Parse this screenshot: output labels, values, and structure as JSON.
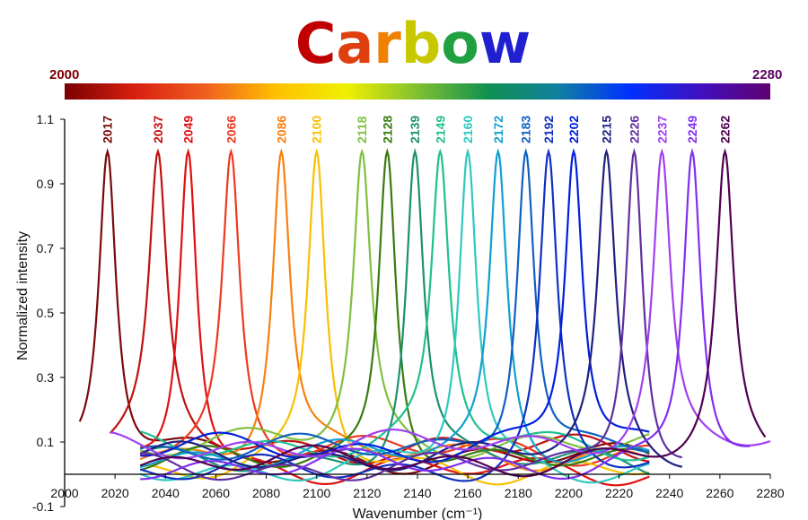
{
  "chart_data": {
    "type": "line",
    "title": "Carbow",
    "title_colors": [
      "#c00000",
      "#e04010",
      "#f08000",
      "#c8c800",
      "#20a040",
      "#2020d0",
      "#601070"
    ],
    "xlabel": "Wavenumber (cm⁻¹)",
    "ylabel": "Normalized intensity",
    "xlim": [
      2000,
      2280
    ],
    "ylim": [
      -0.1,
      1.1
    ],
    "xticks": [
      2000,
      2020,
      2040,
      2060,
      2080,
      2100,
      2120,
      2140,
      2160,
      2180,
      2200,
      2220,
      2240,
      2260,
      2280
    ],
    "yticks": [
      "-0.1",
      "0.1",
      "0.3",
      "0.5",
      "0.7",
      "0.9",
      "1.1"
    ],
    "grid": false,
    "colorbar": {
      "min_label": "2000",
      "max_label": "2280",
      "min_color": "#7a0000",
      "max_color": "#5a0060",
      "stops": [
        "#7a0000",
        "#d82010",
        "#f06020",
        "#ffc000",
        "#f0f000",
        "#80c030",
        "#109050",
        "#1080a0",
        "#0030ff",
        "#4010c0",
        "#600070"
      ]
    },
    "series": [
      {
        "name": "2017",
        "peak": 2017,
        "peak_value": 1.0,
        "x_range": [
          2006,
          2232
        ],
        "color": "#7a0a0a"
      },
      {
        "name": "2037",
        "peak": 2037,
        "peak_value": 1.0,
        "x_range": [
          2018,
          2232
        ],
        "color": "#c01010"
      },
      {
        "name": "2049",
        "peak": 2049,
        "peak_value": 1.0,
        "x_range": [
          2030,
          2232
        ],
        "color": "#e01010"
      },
      {
        "name": "2066",
        "peak": 2066,
        "peak_value": 1.0,
        "x_range": [
          2030,
          2232
        ],
        "color": "#ec3a22"
      },
      {
        "name": "2086",
        "peak": 2086,
        "peak_value": 1.0,
        "x_range": [
          2030,
          2232
        ],
        "color": "#f88010"
      },
      {
        "name": "2100",
        "peak": 2100,
        "peak_value": 1.0,
        "x_range": [
          2030,
          2232
        ],
        "color": "#f8c000"
      },
      {
        "name": "2118",
        "peak": 2118,
        "peak_value": 1.0,
        "x_range": [
          2030,
          2232
        ],
        "color": "#80c040"
      },
      {
        "name": "2128",
        "peak": 2128,
        "peak_value": 1.0,
        "x_range": [
          2030,
          2232
        ],
        "color": "#3a7a10"
      },
      {
        "name": "2139",
        "peak": 2139,
        "peak_value": 1.0,
        "x_range": [
          2030,
          2232
        ],
        "color": "#1e9070"
      },
      {
        "name": "2149",
        "peak": 2149,
        "peak_value": 1.0,
        "x_range": [
          2030,
          2232
        ],
        "color": "#20c090"
      },
      {
        "name": "2160",
        "peak": 2160,
        "peak_value": 1.0,
        "x_range": [
          2030,
          2232
        ],
        "color": "#30c8c0"
      },
      {
        "name": "2172",
        "peak": 2172,
        "peak_value": 1.0,
        "x_range": [
          2030,
          2232
        ],
        "color": "#10a0d0"
      },
      {
        "name": "2183",
        "peak": 2183,
        "peak_value": 1.0,
        "x_range": [
          2030,
          2232
        ],
        "color": "#1060c0"
      },
      {
        "name": "2192",
        "peak": 2192,
        "peak_value": 1.0,
        "x_range": [
          2030,
          2232
        ],
        "color": "#1030c0"
      },
      {
        "name": "2202",
        "peak": 2202,
        "peak_value": 1.0,
        "x_range": [
          2030,
          2232
        ],
        "color": "#0020e0"
      },
      {
        "name": "2215",
        "peak": 2215,
        "peak_value": 1.0,
        "x_range": [
          2030,
          2245
        ],
        "color": "#202080"
      },
      {
        "name": "2226",
        "peak": 2226,
        "peak_value": 1.0,
        "x_range": [
          2030,
          2245
        ],
        "color": "#6030a0"
      },
      {
        "name": "2237",
        "peak": 2237,
        "peak_value": 1.0,
        "x_range": [
          2018,
          2280
        ],
        "color": "#a040f0"
      },
      {
        "name": "2249",
        "peak": 2249,
        "peak_value": 1.0,
        "x_range": [
          2030,
          2272
        ],
        "color": "#8030f0"
      },
      {
        "name": "2262",
        "peak": 2262,
        "peak_value": 1.0,
        "x_range": [
          2030,
          2278
        ],
        "color": "#500050"
      }
    ]
  }
}
